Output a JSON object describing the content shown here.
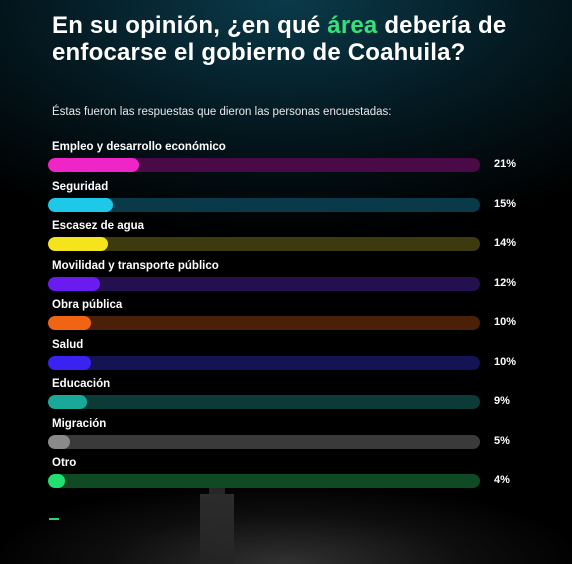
{
  "header": {
    "title_part1": "En su opinión, ¿en qué ",
    "title_accent": "área",
    "title_part2": " debería de enfocarse el gobierno de Coahuila?",
    "subtitle": "Éstas fueron las respuestas que dieron las personas encuestadas:"
  },
  "colors": {
    "accent": "#38e07a",
    "background": "#000000"
  },
  "chart_data": {
    "type": "bar",
    "orientation": "horizontal",
    "title": "En su opinión, ¿en qué área debería de enfocarse el gobierno de Coahuila?",
    "subtitle": "Éstas fueron las respuestas que dieron las personas encuestadas:",
    "xlabel": "",
    "ylabel": "",
    "xlim": [
      0,
      100
    ],
    "categories": [
      "Empleo y desarrollo económico",
      "Seguridad",
      "Escasez de agua",
      "Movilidad y transporte público",
      "Obra pública",
      "Salud",
      "Educación",
      "Migración",
      "Otro"
    ],
    "values": [
      21,
      15,
      14,
      12,
      10,
      10,
      9,
      5,
      4
    ],
    "value_labels": [
      "21%",
      "15%",
      "14%",
      "12%",
      "10%",
      "10%",
      "9%",
      "5%",
      "4%"
    ],
    "fill_colors": [
      "#f025c8",
      "#1ec8e8",
      "#f5e41c",
      "#6a1cf0",
      "#f06414",
      "#3a22f0",
      "#1aa898",
      "#8a8a8a",
      "#22e070"
    ],
    "track_colors": [
      "#4a0a48",
      "#0a3a4a",
      "#3e3a10",
      "#24104e",
      "#4a2008",
      "#141454",
      "#0c3a36",
      "#3a3a3a",
      "#0e4a24"
    ],
    "grid": false,
    "legend": "none"
  }
}
